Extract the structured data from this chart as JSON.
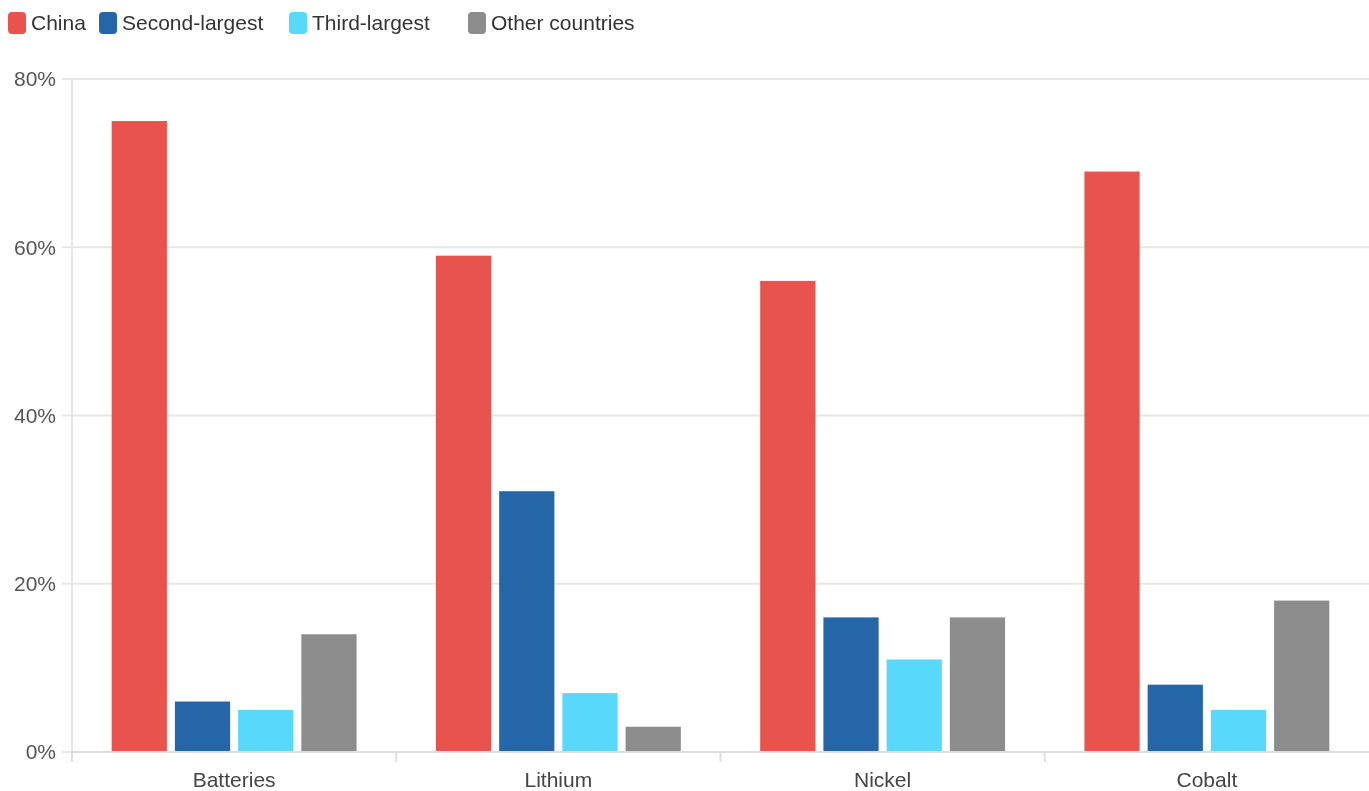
{
  "chart_data": {
    "type": "bar",
    "categories": [
      "Batteries",
      "Lithium",
      "Nickel",
      "Cobalt"
    ],
    "series": [
      {
        "name": "China",
        "color": "#e8534d",
        "values": [
          75,
          59,
          56,
          69
        ]
      },
      {
        "name": "Second-largest",
        "color": "#2566a8",
        "values": [
          6,
          31,
          16,
          8
        ]
      },
      {
        "name": "Third-largest",
        "color": "#58d8fb",
        "values": [
          5,
          7,
          11,
          5
        ]
      },
      {
        "name": "Other countries",
        "color": "#8c8c8c",
        "values": [
          14,
          3,
          16,
          18
        ]
      }
    ],
    "ylim": [
      0,
      80
    ],
    "yticks": [
      {
        "value": 0,
        "label": "0%"
      },
      {
        "value": 20,
        "label": "20%"
      },
      {
        "value": 40,
        "label": "40%"
      },
      {
        "value": 60,
        "label": "60%"
      },
      {
        "value": 80,
        "label": "80%"
      }
    ],
    "grid": "y",
    "legend": "top left"
  }
}
